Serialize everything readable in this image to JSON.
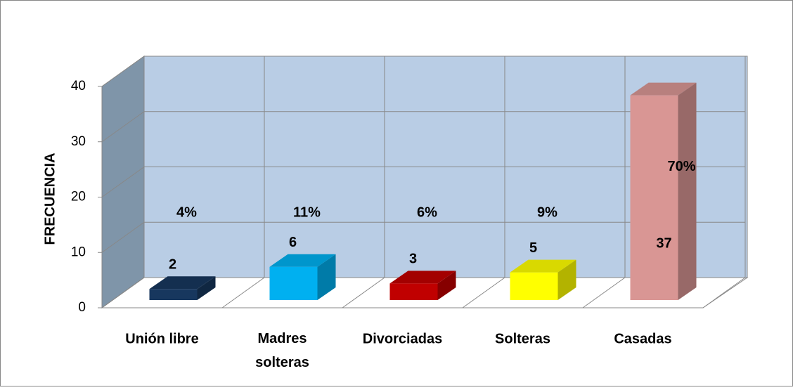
{
  "chart_data": {
    "type": "bar3d",
    "ylabel": "FRECUENCIA",
    "categories": [
      "Unión libre",
      "Madres solteras",
      "Divorciadas",
      "Solteras",
      "Casadas"
    ],
    "values": [
      2,
      6,
      3,
      5,
      37
    ],
    "percent_labels": [
      "4%",
      "11%",
      "6%",
      "9%",
      "70%"
    ],
    "colors": [
      "#17375e",
      "#00b0f0",
      "#c00000",
      "#ffff00",
      "#d99694"
    ],
    "ylim": [
      0,
      40
    ],
    "yticks": [
      0,
      10,
      20,
      30,
      40
    ],
    "grid": true
  }
}
